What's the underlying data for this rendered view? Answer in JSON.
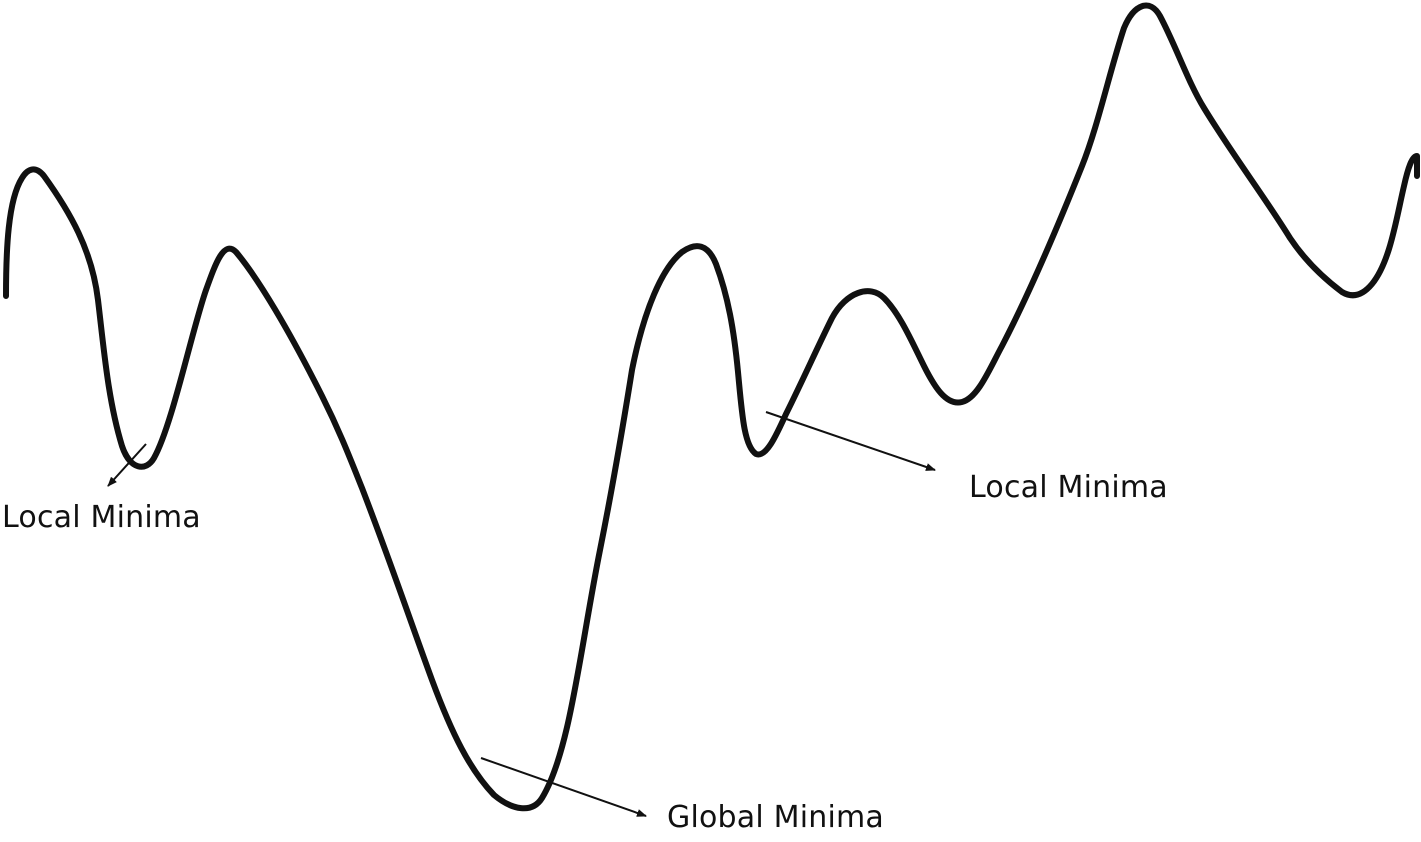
{
  "labels": {
    "local_minima_left": "Local Minima",
    "local_minima_right": "Local Minima",
    "global_minima": "Global Minima"
  },
  "colors": {
    "curve": "#111111",
    "arrow": "#111111",
    "background": "#ffffff"
  }
}
